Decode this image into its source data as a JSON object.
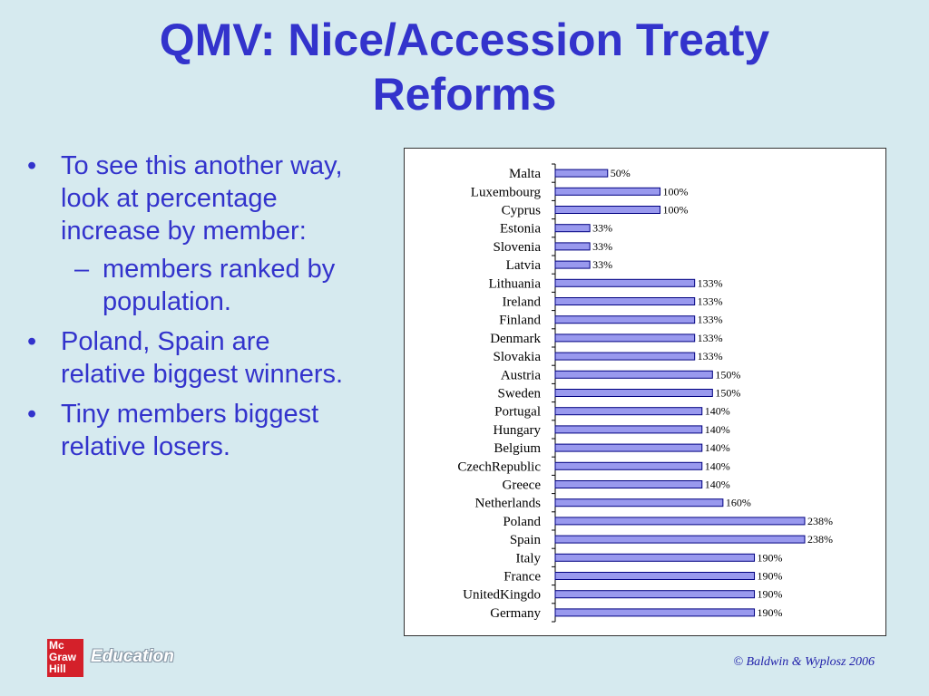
{
  "slide": {
    "title_line1": "QMV: Nice/Accession Treaty",
    "title_line2": "Reforms",
    "bullet_mark": "•",
    "sub_mark": "–",
    "bullets": [
      "To see this another way, look at percentage increase by member:",
      "members ranked by population.",
      "Poland, Spain are relative biggest winners.",
      "Tiny members biggest relative losers."
    ],
    "footer": {
      "logo_text": "Mc Graw Hill",
      "logo_line1": "Mc",
      "logo_line2": "Graw",
      "logo_line3": "Hill",
      "education": "Education",
      "copyright": "© Baldwin & Wyplosz 2006"
    }
  },
  "colors": {
    "title": "#3333cc",
    "bar_fill": "#9999ee",
    "bar_stroke": "#000080"
  },
  "chart_data": {
    "type": "bar",
    "orientation": "horizontal",
    "title": "",
    "xlabel": "",
    "ylabel": "",
    "xlim": [
      0,
      250
    ],
    "grid": false,
    "legend": "none",
    "categories": [
      "Malta",
      "Luxembourg",
      "Cyprus",
      "Estonia",
      "Slovenia",
      "Latvia",
      "Lithuania",
      "Ireland",
      "Finland",
      "Denmark",
      "Slovakia",
      "Austria",
      "Sweden",
      "Portugal",
      "Hungary",
      "Belgium",
      "CzechRepublic",
      "Greece",
      "Netherlands",
      "Poland",
      "Spain",
      "Italy",
      "France",
      "UnitedKingdo",
      "Germany"
    ],
    "values": [
      50,
      100,
      100,
      33,
      33,
      33,
      133,
      133,
      133,
      133,
      133,
      150,
      150,
      140,
      140,
      140,
      140,
      140,
      160,
      238,
      238,
      190,
      190,
      190,
      190
    ],
    "value_labels": [
      "50%",
      "100%",
      "100%",
      "33%",
      "33%",
      "33%",
      "133%",
      "133%",
      "133%",
      "133%",
      "133%",
      "150%",
      "150%",
      "140%",
      "140%",
      "140%",
      "140%",
      "140%",
      "160%",
      "238%",
      "238%",
      "190%",
      "190%",
      "190%",
      "190%"
    ]
  }
}
